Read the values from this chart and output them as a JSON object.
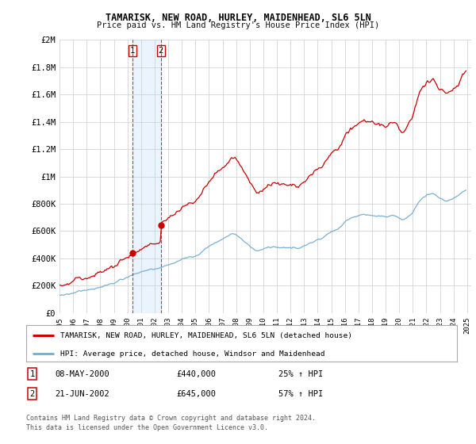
{
  "title": "TAMARISK, NEW ROAD, HURLEY, MAIDENHEAD, SL6 5LN",
  "subtitle": "Price paid vs. HM Land Registry's House Price Index (HPI)",
  "legend_line1": "TAMARISK, NEW ROAD, HURLEY, MAIDENHEAD, SL6 5LN (detached house)",
  "legend_line2": "HPI: Average price, detached house, Windsor and Maidenhead",
  "sale1_date": "08-MAY-2000",
  "sale1_price": 440000,
  "sale1_hpi": "25% ↑ HPI",
  "sale2_date": "21-JUN-2002",
  "sale2_price": 645000,
  "sale2_hpi": "57% ↑ HPI",
  "footer1": "Contains HM Land Registry data © Crown copyright and database right 2024.",
  "footer2": "This data is licensed under the Open Government Licence v3.0.",
  "ylim": [
    0,
    2000000
  ],
  "yticks": [
    0,
    200000,
    400000,
    600000,
    800000,
    1000000,
    1200000,
    1400000,
    1600000,
    1800000,
    2000000
  ],
  "ytick_labels": [
    "£0",
    "£200K",
    "£400K",
    "£600K",
    "£800K",
    "£1M",
    "£1.2M",
    "£1.4M",
    "£1.6M",
    "£1.8M",
    "£2M"
  ],
  "line_color_red": "#cc0000",
  "line_color_blue": "#7ab0d4",
  "sale1_x": 2000.37,
  "sale2_x": 2002.46,
  "background_color": "#ffffff",
  "grid_color": "#cccccc",
  "shade_color": "#ddeeff",
  "vline_color": "#cc0000"
}
